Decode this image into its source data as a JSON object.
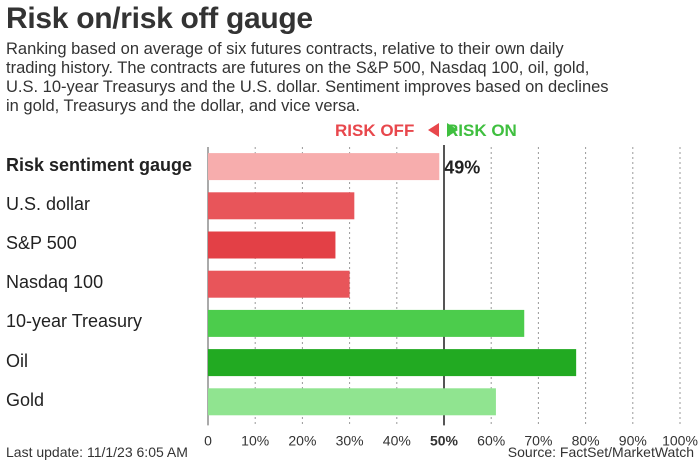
{
  "title": "Risk on/risk off gauge",
  "subtitle_lines": [
    "Ranking based on average of six futures contracts, relative to their own daily",
    "trading history. The contracts are futures on the S&P 500, Nasdaq 100, oil, gold,",
    "U.S. 10-year Treasurys and the U.S. dollar. Sentiment improves based on declines",
    "in gold, Treasurys and the dollar, and vice versa."
  ],
  "legend": {
    "off": "RISK OFF",
    "on": "RISK ON"
  },
  "footer": {
    "updated": "Last update: 11/1/23 6:05 AM",
    "source": "Source: FactSet/MarketWatch"
  },
  "chart_data": {
    "type": "bar",
    "orientation": "horizontal",
    "categories": [
      "Risk sentiment gauge",
      "U.S. dollar",
      "S&P 500",
      "Nasdaq 100",
      "10-year Treasury",
      "Oil",
      "Gold"
    ],
    "values": [
      49,
      31,
      27,
      30,
      67,
      78,
      61
    ],
    "value_labels": [
      "49%",
      "",
      "",
      "",
      "",
      "",
      ""
    ],
    "colors": [
      "#f7adad",
      "#e8555a",
      "#e34046",
      "#e8555a",
      "#4ccc4c",
      "#22aa22",
      "#90e490"
    ],
    "xlim": [
      0,
      100
    ],
    "xticks": [
      "0",
      "10%",
      "20%",
      "30%",
      "40%",
      "50%",
      "60%",
      "70%",
      "80%",
      "90%",
      "100%"
    ],
    "grid": true,
    "midline": 50
  }
}
